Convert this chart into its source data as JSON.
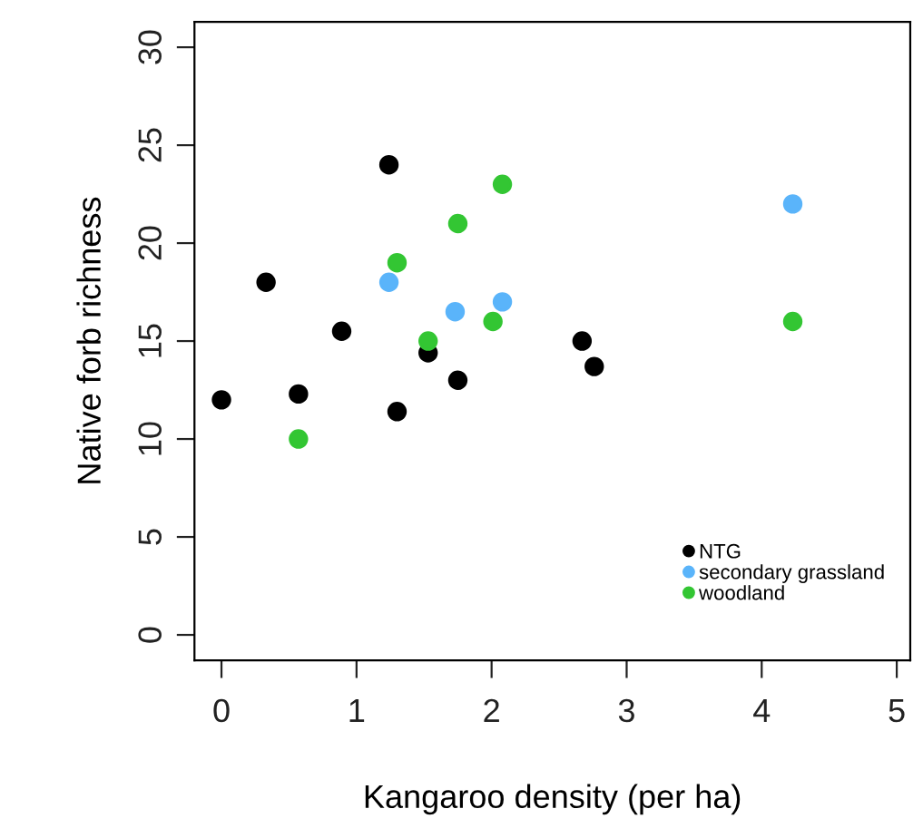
{
  "chart_data": {
    "type": "scatter",
    "xlabel": "Kangaroo density (per ha)",
    "ylabel": "Native forb richness",
    "xlim": [
      -0.2,
      5.1
    ],
    "ylim": [
      -1.3,
      31.3
    ],
    "xticks": [
      0,
      1,
      2,
      3,
      4,
      5
    ],
    "yticks": [
      0,
      5,
      10,
      15,
      20,
      25,
      30
    ],
    "marker": "circle",
    "grid": false,
    "legend": "bottom right",
    "series": [
      {
        "name": "NTG",
        "color": "#000000",
        "x": [
          0,
          0.33,
          0.89,
          0.57,
          1.24,
          1.3,
          1.53,
          1.75,
          2.67,
          2.76
        ],
        "values": [
          12.0,
          18.0,
          15.5,
          12.3,
          24.0,
          11.4,
          14.4,
          13.0,
          15.0,
          13.7
        ]
      },
      {
        "name": "secondary grassland",
        "color": "#5ab4fa",
        "x": [
          1.24,
          1.73,
          2.08,
          4.23
        ],
        "values": [
          18.0,
          16.5,
          17.0,
          22.0
        ]
      },
      {
        "name": "woodland",
        "color": "#33c633",
        "x": [
          0.57,
          1.3,
          1.53,
          1.75,
          2.01,
          2.08,
          4.23
        ],
        "values": [
          10.0,
          19.0,
          15.0,
          21.0,
          16.0,
          23.0,
          16.0
        ]
      }
    ]
  }
}
